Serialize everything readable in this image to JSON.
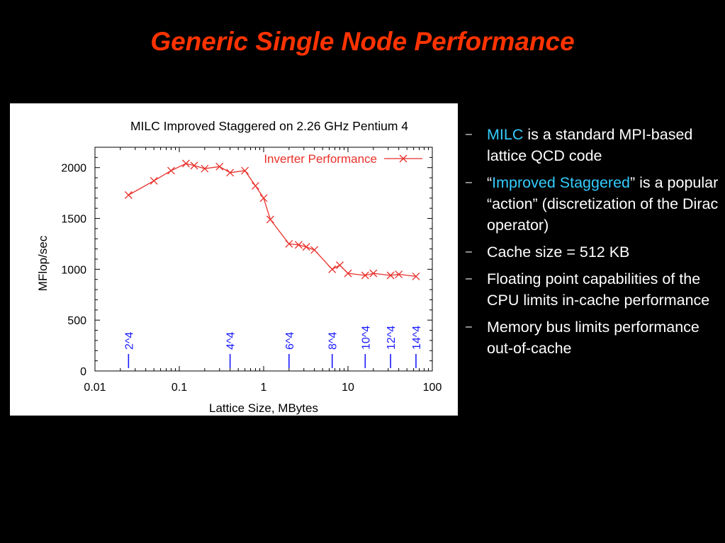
{
  "slide": {
    "title": "Generic Single Node Performance"
  },
  "bullets": [
    {
      "dash": "–",
      "parts": [
        {
          "text": "MILC",
          "hl": true
        },
        {
          "text": " is a standard MPI-based lattice QCD code",
          "hl": false
        }
      ]
    },
    {
      "dash": "–",
      "parts": [
        {
          "text": "“",
          "hl": false
        },
        {
          "text": "Improved Staggered",
          "hl": true
        },
        {
          "text": "” is a popular “action” (discretization of the Dirac operator)",
          "hl": false
        }
      ]
    },
    {
      "dash": "–",
      "parts": [
        {
          "text": "Cache size = 512 KB",
          "hl": false
        }
      ]
    },
    {
      "dash": "–",
      "parts": [
        {
          "text": "Floating point capabilities of the CPU limits in-cache performance",
          "hl": false
        }
      ]
    },
    {
      "dash": "–",
      "parts": [
        {
          "text": "Memory bus limits performance out-of-cache",
          "hl": false
        }
      ]
    }
  ],
  "colors": {
    "title": "#ff3300",
    "highlight": "#33ccff",
    "series": "#e8302a",
    "marker_labels": "#1a1aff"
  },
  "chart_data": {
    "type": "line",
    "title": "MILC Improved Staggered on 2.26 GHz Pentium 4",
    "xlabel": "Lattice Size, MBytes",
    "ylabel": "MFlop/sec",
    "xscale": "log",
    "xlim": [
      0.01,
      100
    ],
    "ylim": [
      0,
      2200
    ],
    "x_ticks": [
      {
        "value": 0.01,
        "label": "0.01"
      },
      {
        "value": 0.1,
        "label": "0.1"
      },
      {
        "value": 1,
        "label": "1"
      },
      {
        "value": 10,
        "label": "10"
      },
      {
        "value": 100,
        "label": "100"
      }
    ],
    "y_ticks": [
      {
        "value": 0,
        "label": "0"
      },
      {
        "value": 500,
        "label": "500"
      },
      {
        "value": 1000,
        "label": "1000"
      },
      {
        "value": 1500,
        "label": "1500"
      },
      {
        "value": 2000,
        "label": "2000"
      }
    ],
    "legend_position": "top-right",
    "grid": false,
    "series": [
      {
        "name": "Inverter Performance",
        "marker": "x",
        "x": [
          0.025,
          0.05,
          0.08,
          0.12,
          0.15,
          0.2,
          0.3,
          0.4,
          0.6,
          0.8,
          1.0,
          1.2,
          2.0,
          2.6,
          3.2,
          4.0,
          6.5,
          8.0,
          10.0,
          16.0,
          20.0,
          32.0,
          40.0,
          64.0
        ],
        "y": [
          1730,
          1870,
          1970,
          2040,
          2020,
          1990,
          2010,
          1950,
          1970,
          1820,
          1700,
          1490,
          1250,
          1240,
          1220,
          1190,
          1000,
          1040,
          960,
          940,
          960,
          940,
          950,
          930
        ]
      }
    ],
    "annotations": [
      {
        "x": 0.025,
        "label": "2^4"
      },
      {
        "x": 0.4,
        "label": "4^4"
      },
      {
        "x": 2.0,
        "label": "6^4"
      },
      {
        "x": 6.5,
        "label": "8^4"
      },
      {
        "x": 16.0,
        "label": "10^4"
      },
      {
        "x": 32.0,
        "label": "12^4"
      },
      {
        "x": 64.0,
        "label": "14^4"
      }
    ]
  }
}
